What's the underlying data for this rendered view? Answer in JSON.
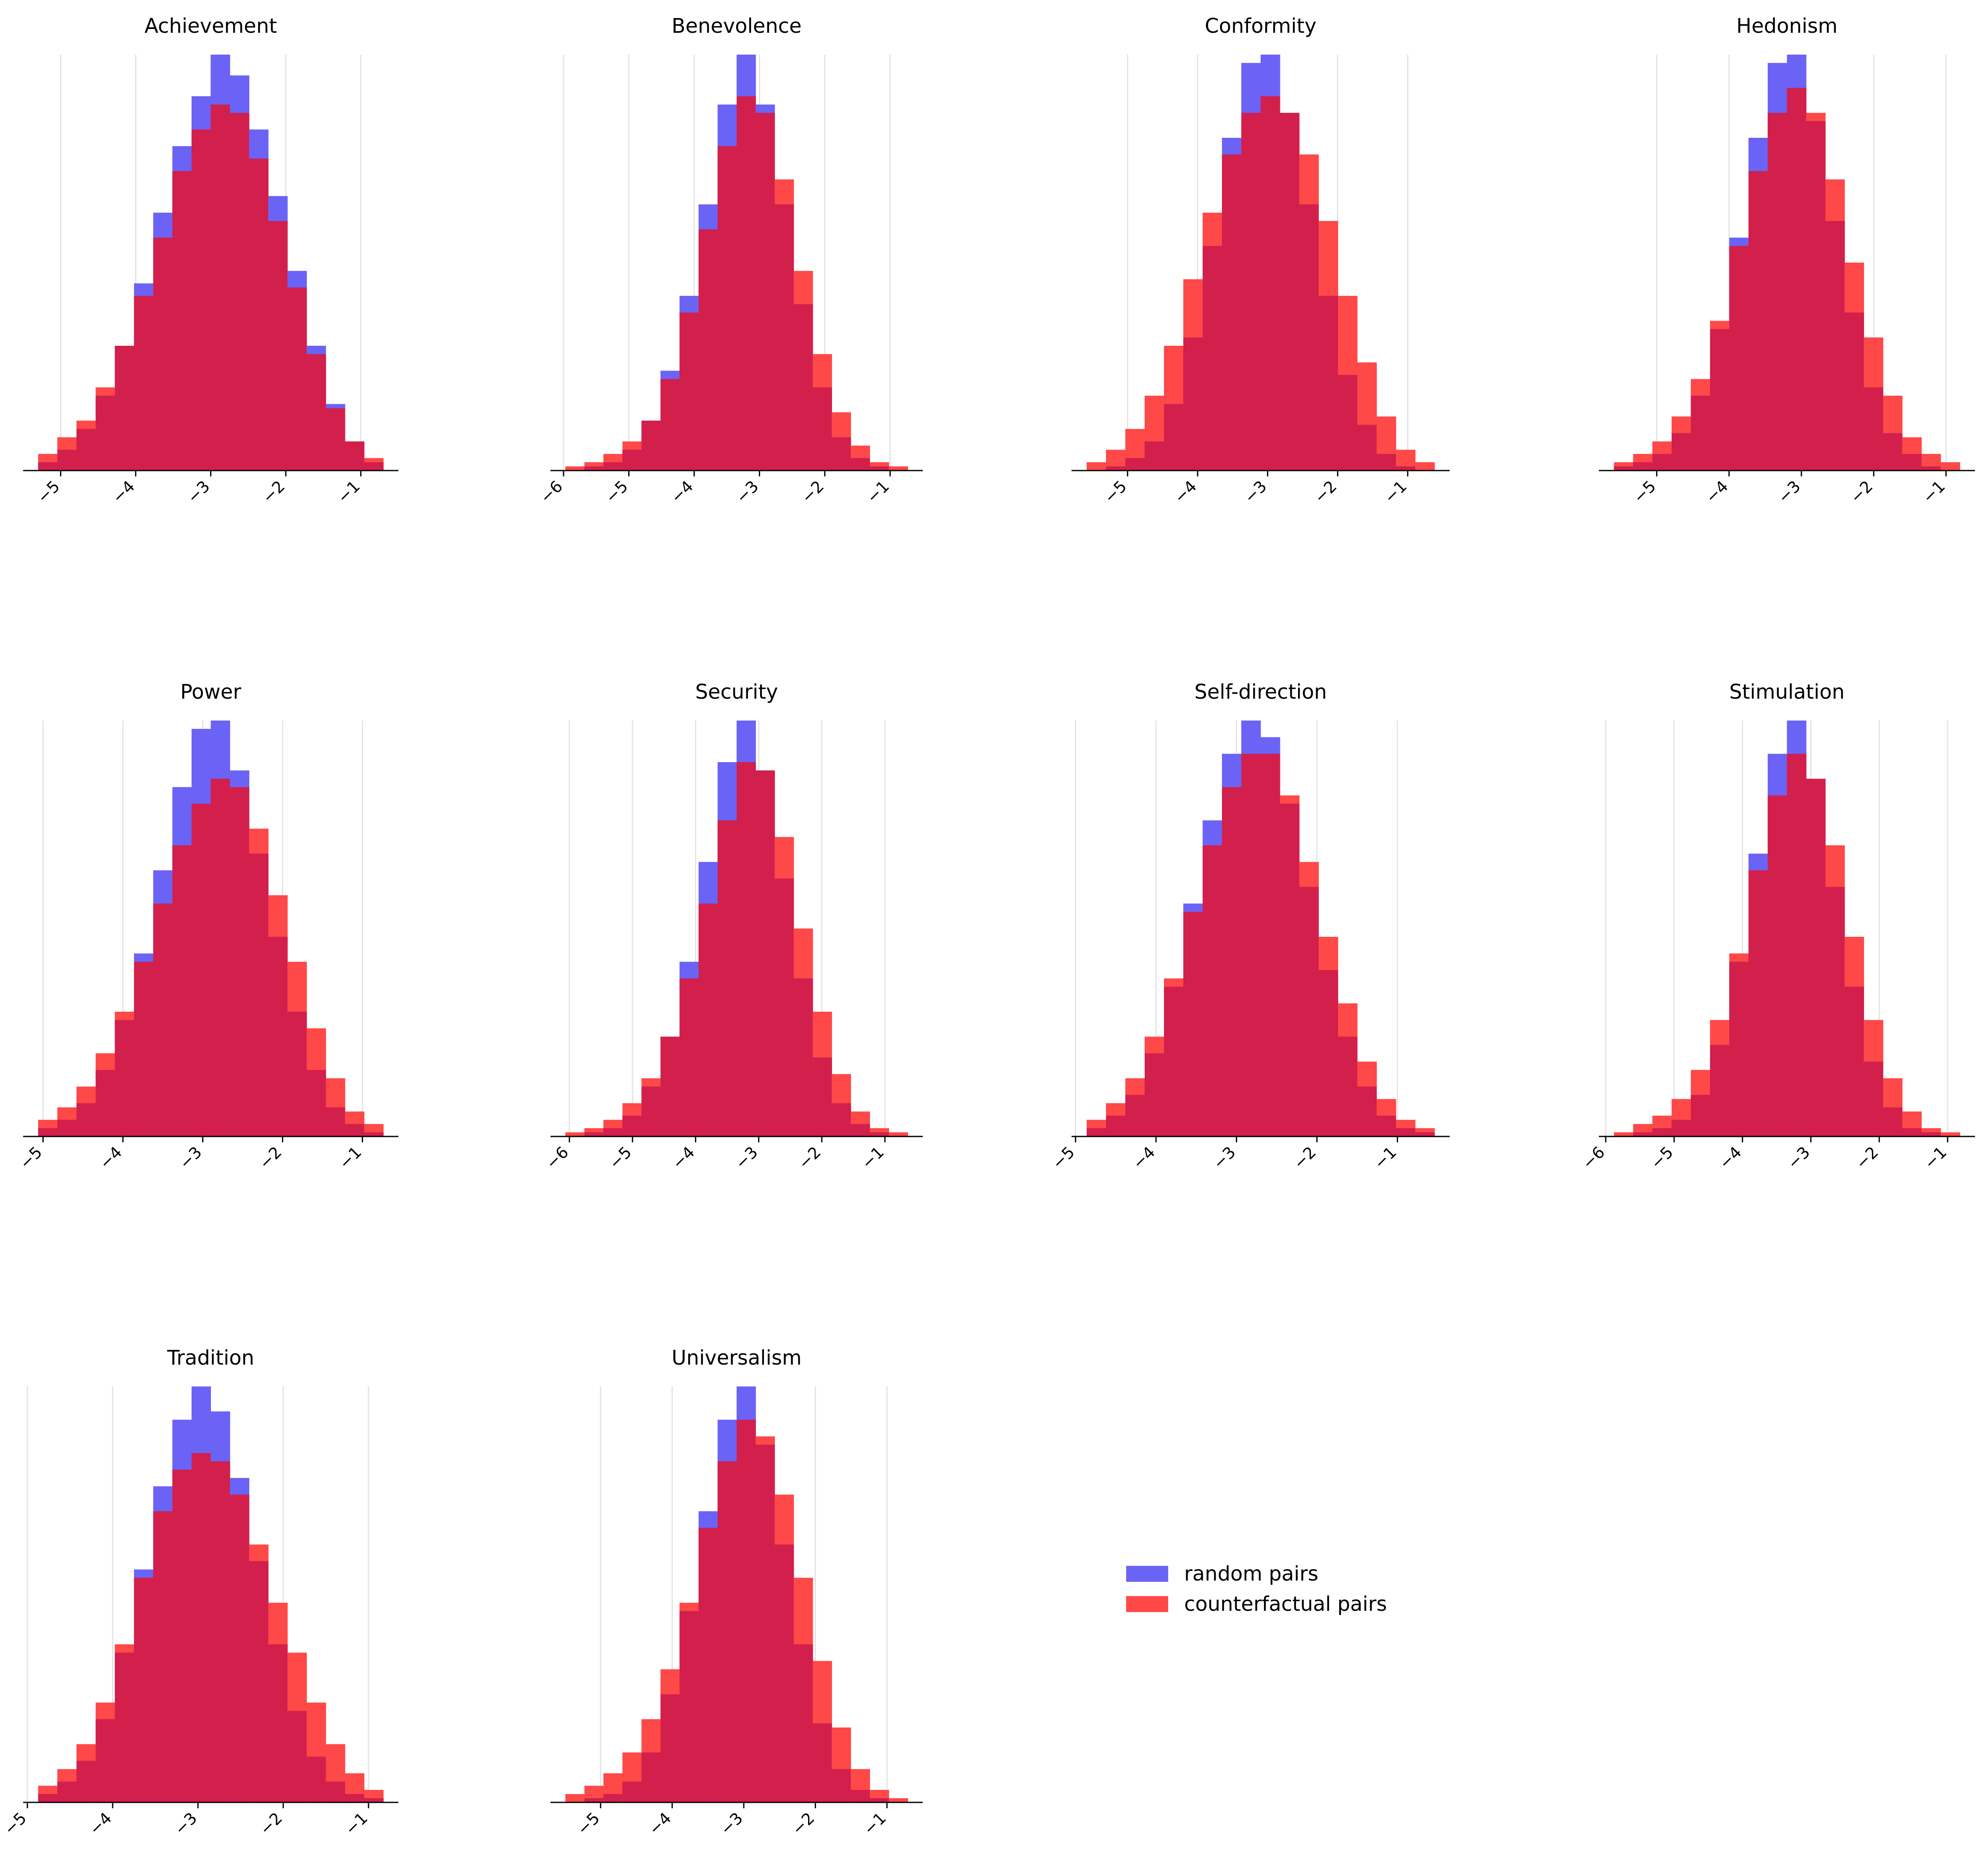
{
  "chart_data": {
    "type": "histogram",
    "series_colors": {
      "random pairs": "#6b63f5",
      "counterfactual pairs": "#ff4848",
      "overlap": "#d21f4c"
    },
    "legend": {
      "placement": "center",
      "entries": [
        "random pairs",
        "counterfactual pairs"
      ]
    },
    "panels": [
      {
        "title": "Achievement",
        "xlim": [
          -5.5,
          -0.5
        ],
        "xticks": [
          -5,
          -4,
          -3,
          -2,
          -1
        ],
        "random_density": [
          0.02,
          0.05,
          0.1,
          0.18,
          0.3,
          0.45,
          0.62,
          0.78,
          0.9,
          1.0,
          0.95,
          0.82,
          0.66,
          0.48,
          0.3,
          0.16,
          0.07,
          0.02
        ],
        "counterfactual_density": [
          0.04,
          0.08,
          0.12,
          0.2,
          0.3,
          0.42,
          0.56,
          0.72,
          0.82,
          0.88,
          0.86,
          0.75,
          0.6,
          0.44,
          0.28,
          0.15,
          0.07,
          0.03
        ]
      },
      {
        "title": "Benevolence",
        "xlim": [
          -6.2,
          -0.5
        ],
        "xticks": [
          -6,
          -5,
          -4,
          -3,
          -2,
          -1
        ],
        "random_density": [
          0.0,
          0.01,
          0.02,
          0.05,
          0.12,
          0.24,
          0.42,
          0.64,
          0.88,
          1.0,
          0.88,
          0.64,
          0.4,
          0.2,
          0.08,
          0.03,
          0.01,
          0.0
        ],
        "counterfactual_density": [
          0.01,
          0.02,
          0.04,
          0.07,
          0.12,
          0.22,
          0.38,
          0.58,
          0.78,
          0.9,
          0.86,
          0.7,
          0.48,
          0.28,
          0.14,
          0.06,
          0.02,
          0.01
        ]
      },
      {
        "title": "Conformity",
        "xlim": [
          -5.8,
          -0.4
        ],
        "xticks": [
          -5,
          -4,
          -3,
          -2,
          -1
        ],
        "random_density": [
          0.0,
          0.01,
          0.03,
          0.07,
          0.16,
          0.32,
          0.54,
          0.8,
          0.98,
          1.0,
          0.86,
          0.64,
          0.42,
          0.23,
          0.11,
          0.04,
          0.01,
          0.0
        ],
        "counterfactual_density": [
          0.02,
          0.05,
          0.1,
          0.18,
          0.3,
          0.46,
          0.62,
          0.76,
          0.86,
          0.9,
          0.86,
          0.76,
          0.6,
          0.42,
          0.26,
          0.13,
          0.05,
          0.02
        ]
      },
      {
        "title": "Hedonism",
        "xlim": [
          -5.8,
          -0.6
        ],
        "xticks": [
          -5,
          -4,
          -3,
          -2,
          -1
        ],
        "random_density": [
          0.01,
          0.02,
          0.04,
          0.09,
          0.18,
          0.34,
          0.56,
          0.8,
          0.98,
          1.0,
          0.84,
          0.6,
          0.38,
          0.2,
          0.09,
          0.04,
          0.01,
          0.0
        ],
        "counterfactual_density": [
          0.02,
          0.04,
          0.07,
          0.13,
          0.22,
          0.36,
          0.54,
          0.72,
          0.86,
          0.92,
          0.86,
          0.7,
          0.5,
          0.32,
          0.18,
          0.08,
          0.04,
          0.02
        ]
      },
      {
        "title": "Power",
        "xlim": [
          -5.25,
          -0.55
        ],
        "xticks": [
          -5,
          -4,
          -3,
          -2,
          -1
        ],
        "random_density": [
          0.02,
          0.04,
          0.08,
          0.16,
          0.28,
          0.44,
          0.64,
          0.84,
          0.98,
          1.0,
          0.88,
          0.68,
          0.48,
          0.3,
          0.16,
          0.07,
          0.03,
          0.01
        ],
        "counterfactual_density": [
          0.04,
          0.07,
          0.12,
          0.2,
          0.3,
          0.42,
          0.56,
          0.7,
          0.8,
          0.86,
          0.84,
          0.74,
          0.58,
          0.42,
          0.26,
          0.14,
          0.06,
          0.03
        ]
      },
      {
        "title": "Security",
        "xlim": [
          -6.3,
          -0.4
        ],
        "xticks": [
          -6,
          -5,
          -4,
          -3,
          -2,
          -1
        ],
        "random_density": [
          0.0,
          0.01,
          0.02,
          0.05,
          0.12,
          0.24,
          0.42,
          0.66,
          0.9,
          1.0,
          0.88,
          0.62,
          0.38,
          0.19,
          0.08,
          0.03,
          0.01,
          0.0
        ],
        "counterfactual_density": [
          0.01,
          0.02,
          0.04,
          0.08,
          0.14,
          0.24,
          0.38,
          0.56,
          0.76,
          0.9,
          0.88,
          0.72,
          0.5,
          0.3,
          0.15,
          0.06,
          0.02,
          0.01
        ]
      },
      {
        "title": "Self-direction",
        "xlim": [
          -5.05,
          -0.35
        ],
        "xticks": [
          -5,
          -4,
          -3,
          -2,
          -1
        ],
        "random_density": [
          0.02,
          0.05,
          0.1,
          0.2,
          0.36,
          0.56,
          0.76,
          0.92,
          1.0,
          0.96,
          0.8,
          0.6,
          0.4,
          0.24,
          0.12,
          0.05,
          0.02,
          0.01
        ],
        "counterfactual_density": [
          0.04,
          0.08,
          0.14,
          0.24,
          0.38,
          0.54,
          0.7,
          0.84,
          0.92,
          0.92,
          0.82,
          0.66,
          0.48,
          0.32,
          0.18,
          0.09,
          0.04,
          0.02
        ]
      },
      {
        "title": "Stimulation",
        "xlim": [
          -6.1,
          -0.6
        ],
        "xticks": [
          -6,
          -5,
          -4,
          -3,
          -2,
          -1
        ],
        "random_density": [
          0.0,
          0.01,
          0.02,
          0.04,
          0.1,
          0.22,
          0.42,
          0.68,
          0.92,
          1.0,
          0.86,
          0.6,
          0.36,
          0.18,
          0.07,
          0.02,
          0.01,
          0.0
        ],
        "counterfactual_density": [
          0.01,
          0.03,
          0.05,
          0.09,
          0.16,
          0.28,
          0.44,
          0.64,
          0.82,
          0.92,
          0.86,
          0.7,
          0.48,
          0.28,
          0.14,
          0.06,
          0.02,
          0.01
        ]
      },
      {
        "title": "Tradition",
        "xlim": [
          -5.05,
          -0.65
        ],
        "xticks": [
          -5,
          -4,
          -3,
          -2,
          -1
        ],
        "random_density": [
          0.02,
          0.05,
          0.1,
          0.2,
          0.36,
          0.56,
          0.76,
          0.92,
          1.0,
          0.94,
          0.78,
          0.58,
          0.38,
          0.22,
          0.11,
          0.05,
          0.02,
          0.01
        ],
        "counterfactual_density": [
          0.04,
          0.08,
          0.14,
          0.24,
          0.38,
          0.54,
          0.7,
          0.8,
          0.84,
          0.82,
          0.74,
          0.62,
          0.48,
          0.36,
          0.24,
          0.14,
          0.07,
          0.03
        ]
      },
      {
        "title": "Universalism",
        "xlim": [
          -5.7,
          -0.5
        ],
        "xticks": [
          -5,
          -4,
          -3,
          -2,
          -1
        ],
        "random_density": [
          0.0,
          0.01,
          0.02,
          0.05,
          0.12,
          0.26,
          0.46,
          0.7,
          0.92,
          1.0,
          0.86,
          0.62,
          0.38,
          0.19,
          0.08,
          0.03,
          0.01,
          0.0
        ],
        "counterfactual_density": [
          0.02,
          0.04,
          0.07,
          0.12,
          0.2,
          0.32,
          0.48,
          0.66,
          0.82,
          0.92,
          0.88,
          0.74,
          0.54,
          0.34,
          0.18,
          0.08,
          0.03,
          0.01
        ]
      }
    ]
  }
}
